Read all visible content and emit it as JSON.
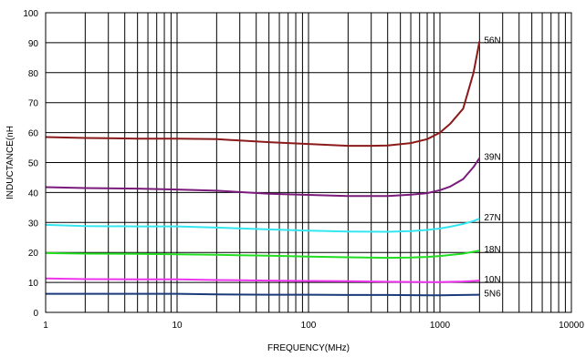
{
  "chart_data": {
    "type": "line",
    "title": "",
    "xlabel": "FREQUENCY(MHz)",
    "ylabel": "INDUCTANCE(nH",
    "xscale": "log",
    "xlim": [
      1,
      10000
    ],
    "ylim": [
      0,
      100
    ],
    "grid": true,
    "legend": "none",
    "xticks": [
      1,
      10,
      100,
      1000,
      10000
    ],
    "xtick_labels": [
      "1",
      "10",
      "100",
      "1000",
      "10000"
    ],
    "yticks": [
      0,
      10,
      20,
      30,
      40,
      50,
      60,
      70,
      80,
      90,
      100
    ],
    "ytick_labels": [
      "0",
      "10",
      "20",
      "30",
      "40",
      "50",
      "60",
      "70",
      "80",
      "90",
      "100"
    ],
    "series": [
      {
        "name": "56N",
        "color": "#8b1a1a",
        "points": [
          [
            1,
            58.5
          ],
          [
            2,
            58.2
          ],
          [
            5,
            58.0
          ],
          [
            10,
            58.0
          ],
          [
            20,
            57.8
          ],
          [
            50,
            56.8
          ],
          [
            100,
            56.2
          ],
          [
            200,
            55.6
          ],
          [
            300,
            55.6
          ],
          [
            400,
            55.7
          ],
          [
            600,
            56.5
          ],
          [
            800,
            57.8
          ],
          [
            1000,
            60.0
          ],
          [
            1200,
            63.0
          ],
          [
            1500,
            68.0
          ],
          [
            1800,
            80.0
          ],
          [
            2000,
            90.5
          ]
        ]
      },
      {
        "name": "39N",
        "color": "#7a1a7a",
        "points": [
          [
            1,
            41.8
          ],
          [
            2,
            41.5
          ],
          [
            5,
            41.3
          ],
          [
            10,
            41.0
          ],
          [
            20,
            40.6
          ],
          [
            50,
            39.6
          ],
          [
            100,
            39.2
          ],
          [
            200,
            38.8
          ],
          [
            400,
            38.8
          ],
          [
            600,
            39.3
          ],
          [
            800,
            39.8
          ],
          [
            1000,
            40.8
          ],
          [
            1200,
            42.0
          ],
          [
            1500,
            44.5
          ],
          [
            1800,
            48.5
          ],
          [
            2000,
            51.5
          ]
        ]
      },
      {
        "name": "27N",
        "color": "#33e6f0",
        "points": [
          [
            1,
            29.2
          ],
          [
            2,
            28.8
          ],
          [
            5,
            28.7
          ],
          [
            10,
            28.7
          ],
          [
            20,
            28.3
          ],
          [
            50,
            27.7
          ],
          [
            100,
            27.3
          ],
          [
            200,
            27.0
          ],
          [
            400,
            26.9
          ],
          [
            600,
            27.1
          ],
          [
            800,
            27.5
          ],
          [
            1000,
            28.0
          ],
          [
            1200,
            28.6
          ],
          [
            1500,
            29.5
          ],
          [
            1800,
            30.5
          ],
          [
            2000,
            31.3
          ]
        ]
      },
      {
        "name": "18N",
        "color": "#22dd22",
        "points": [
          [
            1,
            19.8
          ],
          [
            2,
            19.6
          ],
          [
            5,
            19.5
          ],
          [
            10,
            19.4
          ],
          [
            20,
            19.2
          ],
          [
            50,
            18.9
          ],
          [
            100,
            18.6
          ],
          [
            200,
            18.4
          ],
          [
            400,
            18.2
          ],
          [
            600,
            18.3
          ],
          [
            800,
            18.5
          ],
          [
            1000,
            18.8
          ],
          [
            1500,
            19.6
          ],
          [
            2000,
            20.6
          ]
        ]
      },
      {
        "name": "10N",
        "color": "#ee33ee",
        "points": [
          [
            1,
            11.3
          ],
          [
            2,
            11.1
          ],
          [
            5,
            11.0
          ],
          [
            10,
            11.0
          ],
          [
            20,
            10.8
          ],
          [
            50,
            10.6
          ],
          [
            100,
            10.5
          ],
          [
            200,
            10.4
          ],
          [
            400,
            10.2
          ],
          [
            800,
            10.1
          ],
          [
            1000,
            10.1
          ],
          [
            1500,
            10.3
          ],
          [
            2000,
            10.6
          ]
        ]
      },
      {
        "name": "5N6",
        "color": "#1a3a7a",
        "points": [
          [
            1,
            6.2
          ],
          [
            2,
            6.2
          ],
          [
            5,
            6.2
          ],
          [
            10,
            6.2
          ],
          [
            20,
            6.0
          ],
          [
            50,
            5.9
          ],
          [
            100,
            5.9
          ],
          [
            200,
            5.8
          ],
          [
            400,
            5.8
          ],
          [
            800,
            5.7
          ],
          [
            1000,
            5.7
          ],
          [
            1500,
            5.8
          ],
          [
            2000,
            5.9
          ]
        ]
      }
    ]
  }
}
